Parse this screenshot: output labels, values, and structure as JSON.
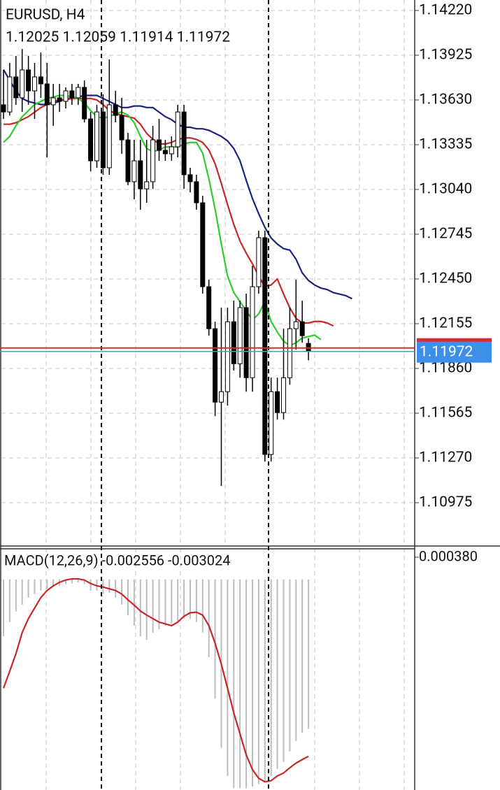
{
  "chart_data": [
    {
      "type": "candlestick",
      "title": "EURUSD, H4",
      "subtitle": "1.12025 1.12059 1.11914 1.11972",
      "open": [
        1.13598,
        1.13551,
        1.13782,
        1.13644,
        1.13828,
        1.1369,
        1.13782,
        1.13736,
        1.13598,
        1.13644,
        1.13621,
        1.1369,
        1.13644,
        1.13713,
        1.13505,
        1.13229,
        1.13551,
        1.13183,
        1.13598,
        1.13528,
        1.13367,
        1.13091,
        1.13229,
        1.13044,
        1.13091,
        1.13367,
        1.13298,
        1.13275,
        1.13321,
        1.13551,
        1.13137,
        1.13091,
        1.12952,
        1.12399,
        1.12122,
        1.11638,
        1.11707,
        1.12168,
        1.11891,
        1.12261,
        1.11799,
        1.12399,
        1.12722,
        1.11293,
        1.11707,
        1.11569,
        1.11799,
        1.12122,
        1.12168,
        1.12025
      ],
      "high": [
        1.13828,
        1.13874,
        1.1392,
        1.13966,
        1.1392,
        1.13874,
        1.13943,
        1.13874,
        1.13736,
        1.13736,
        1.13713,
        1.13736,
        1.13736,
        1.13759,
        1.13551,
        1.13598,
        1.13667,
        1.13897,
        1.1369,
        1.13644,
        1.13413,
        1.13367,
        1.13367,
        1.13367,
        1.13459,
        1.13505,
        1.13367,
        1.1339,
        1.13598,
        1.13598,
        1.13183,
        1.13137,
        1.12998,
        1.12445,
        1.12168,
        1.12261,
        1.12261,
        1.12307,
        1.12307,
        1.12353,
        1.12537,
        1.12768,
        1.12768,
        1.11799,
        1.11799,
        1.12122,
        1.12261,
        1.12445,
        1.12307,
        1.12059
      ],
      "low": [
        1.13505,
        1.13528,
        1.13598,
        1.13551,
        1.13598,
        1.13505,
        1.13644,
        1.13252,
        1.13459,
        1.13551,
        1.13574,
        1.13598,
        1.13598,
        1.13482,
        1.1316,
        1.13183,
        1.13137,
        1.13137,
        1.13482,
        1.13275,
        1.13068,
        1.12975,
        1.12906,
        1.12952,
        1.13044,
        1.13229,
        1.13229,
        1.13229,
        1.13252,
        1.13044,
        1.13021,
        1.12906,
        1.12353,
        1.12076,
        1.11546,
        1.11085,
        1.11615,
        1.11846,
        1.11799,
        1.11707,
        1.11707,
        1.12353,
        1.11246,
        1.11246,
        1.11523,
        1.11523,
        1.11753,
        1.11984,
        1.1203,
        1.11914
      ],
      "close": [
        1.13551,
        1.13782,
        1.13644,
        1.13828,
        1.1369,
        1.13782,
        1.13736,
        1.13598,
        1.13644,
        1.13621,
        1.1369,
        1.13644,
        1.13713,
        1.13505,
        1.13229,
        1.13551,
        1.13183,
        1.13598,
        1.13528,
        1.13367,
        1.13091,
        1.13229,
        1.13044,
        1.13091,
        1.13367,
        1.13298,
        1.13275,
        1.13321,
        1.13551,
        1.13137,
        1.13091,
        1.12952,
        1.12399,
        1.12122,
        1.11638,
        1.11707,
        1.12168,
        1.11891,
        1.12261,
        1.11799,
        1.12399,
        1.12722,
        1.11293,
        1.11707,
        1.11569,
        1.11799,
        1.12122,
        1.12168,
        1.12076,
        1.11972
      ],
      "up_color": "#ffffff",
      "down_color": "#000000",
      "series": [
        {
          "color": "#1a237e",
          "values": [
            1.1383,
            1.1376,
            1.1369,
            1.1364,
            1.1362,
            1.1361,
            1.136,
            1.136,
            1.1361,
            1.1362,
            1.1364,
            1.1364,
            1.1365,
            1.1366,
            1.1366,
            1.1366,
            1.1364,
            1.1362,
            1.136,
            1.1358,
            1.1358,
            1.1359,
            1.1359,
            1.1358,
            1.1358,
            1.1355,
            1.1352,
            1.135,
            1.1347,
            1.1345,
            1.1345,
            1.1344,
            1.1344,
            1.1343,
            1.1341,
            1.1339,
            1.1336,
            1.1331,
            1.1323,
            1.131,
            1.1298,
            1.1288,
            1.1279,
            1.1272,
            1.1268,
            1.1265,
            1.1264,
            1.1258,
            1.1249,
            1.1244,
            1.1241,
            1.1239,
            1.1238,
            1.1236,
            1.1235,
            1.1234,
            1.1232
          ]
        },
        {
          "color": "#c62828",
          "values": [
            1.1347,
            1.1347,
            1.1348,
            1.135,
            1.1352,
            1.1355,
            1.1358,
            1.136,
            1.1362,
            1.1363,
            1.1363,
            1.1364,
            1.1364,
            1.1364,
            1.1364,
            1.1363,
            1.136,
            1.1356,
            1.1354,
            1.1353,
            1.1352,
            1.1351,
            1.1347,
            1.1341,
            1.1337,
            1.1334,
            1.1334,
            1.1335,
            1.1337,
            1.1338,
            1.1338,
            1.1337,
            1.1335,
            1.133,
            1.1321,
            1.1308,
            1.1294,
            1.1281,
            1.127,
            1.1262,
            1.1255,
            1.1247,
            1.124,
            1.1241,
            1.1245,
            1.1235,
            1.1226,
            1.1219,
            1.1216,
            1.1216,
            1.1217,
            1.1217,
            1.1216,
            1.1214
          ]
        },
        {
          "color": "#2ecc2e",
          "values": [
            1.1335,
            1.1339,
            1.1346,
            1.1352,
            1.1356,
            1.136,
            1.1362,
            1.1364,
            1.1365,
            1.1366,
            1.1366,
            1.1365,
            1.1364,
            1.1361,
            1.1356,
            1.1352,
            1.1351,
            1.1352,
            1.1354,
            1.1355,
            1.1353,
            1.1348,
            1.1339,
            1.1331,
            1.1329,
            1.133,
            1.1332,
            1.1332,
            1.1332,
            1.1334,
            1.1335,
            1.1335,
            1.1328,
            1.1311,
            1.1291,
            1.1268,
            1.1247,
            1.1236,
            1.123,
            1.1224,
            1.1218,
            1.1222,
            1.123,
            1.1217,
            1.121,
            1.1204,
            1.1201,
            1.1203,
            1.1206,
            1.1207,
            1.1208,
            1.1205
          ]
        }
      ],
      "ylim": [
        1.10694,
        1.14289
      ],
      "yticks": [
        {
          "value": 1.1422,
          "label": "1.14220"
        },
        1.13925,
        {
          "value": 1.1363,
          "label": "1.13630"
        },
        {
          "value": 1.13335,
          "label": "1.13335"
        },
        {
          "value": 1.1304,
          "label": "1.13040"
        },
        1.12745,
        {
          "value": 1.1245,
          "label": "1.12450"
        },
        1.12155,
        {
          "value": 1.1186,
          "label": "1.11860"
        },
        1.11565,
        {
          "value": 1.1127,
          "label": "1.11270"
        },
        1.10975
      ],
      "grid": true,
      "bid": 1.11972,
      "bid_color": "#3d8fe8",
      "ask": 1.11995,
      "ask_color": "#d32f2f"
    },
    {
      "type": "macd",
      "title": "MACD(12,26,9) -0.002556 -0.003024",
      "histogram": [
        -0.00097,
        -0.00073,
        -0.00055,
        -0.00043,
        -0.00031,
        -0.00025,
        -0.00019,
        -0.00016,
        -0.00013,
        -0.00011,
        -8e-05,
        -7e-05,
        -5e-05,
        -8e-05,
        -0.00019,
        -0.00019,
        -0.00025,
        -0.00023,
        -0.00031,
        -0.00043,
        -0.00061,
        -0.00079,
        -0.00097,
        -0.00103,
        -0.00091,
        -0.00085,
        -0.00079,
        -0.00076,
        -0.00071,
        -0.00067,
        -0.00067,
        -0.00073,
        -0.00091,
        -0.00133,
        -0.00204,
        -0.00288,
        -0.00336,
        -0.00357,
        -0.00357,
        -0.00357,
        -0.00354,
        -0.0035,
        -0.00345,
        -0.00336,
        -0.00324,
        -0.00312,
        -0.00294,
        -0.00276,
        -0.00262,
        -0.002556
      ],
      "histogram_color": "#bdbdbd",
      "signal": [
        -0.00186,
        -0.00157,
        -0.00127,
        -0.00091,
        -0.00067,
        -0.00049,
        -0.00031,
        -0.00019,
        -0.00011,
        -5e-05,
        -1e-05,
        1e-05,
        1e-05,
        -1e-05,
        -7e-05,
        -0.00011,
        -0.00013,
        -0.00016,
        -0.00019,
        -0.00025,
        -0.00035,
        -0.00044,
        -0.00054,
        -0.00061,
        -0.00067,
        -0.00073,
        -0.00076,
        -0.00079,
        -0.00073,
        -0.00063,
        -0.00057,
        -0.00056,
        -0.00061,
        -0.00079,
        -0.00109,
        -0.00145,
        -0.00186,
        -0.00228,
        -0.00264,
        -0.003,
        -0.00325,
        -0.0034,
        -0.00346,
        -0.00344,
        -0.00336,
        -0.00331,
        -0.00322,
        -0.00314,
        -0.00308,
        -0.003024
      ],
      "signal_color": "#c62828",
      "ylim": [
        -0.0036,
        0.00038
      ],
      "yticks": [
        {
          "value": 0.00038,
          "label": "0.000380"
        }
      ]
    }
  ]
}
